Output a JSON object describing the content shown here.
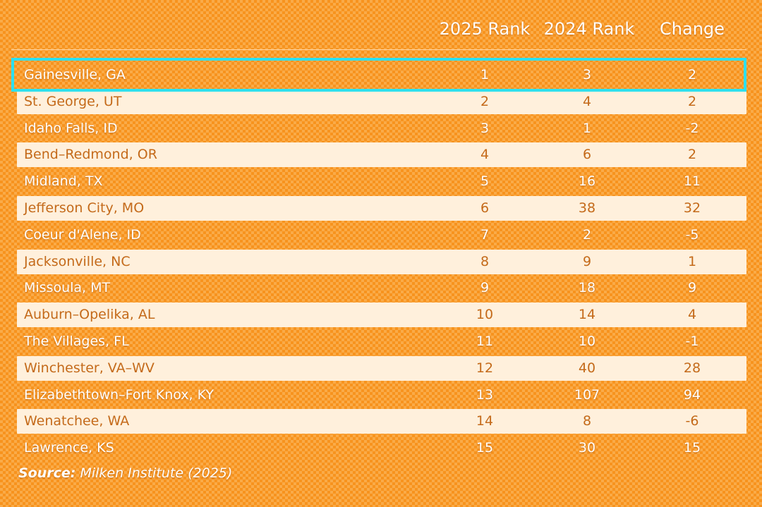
{
  "chart_data": {
    "type": "table",
    "columns": [
      "",
      "2025 Rank",
      "2024 Rank",
      "Change"
    ],
    "rows": [
      {
        "city": "Gainesville, GA",
        "rank_2025": "1",
        "rank_2024": "3",
        "change": "2"
      },
      {
        "city": "St. George, UT",
        "rank_2025": "2",
        "rank_2024": "4",
        "change": "2"
      },
      {
        "city": "Idaho Falls, ID",
        "rank_2025": "3",
        "rank_2024": "1",
        "change": "-2"
      },
      {
        "city": "Bend–Redmond, OR",
        "rank_2025": "4",
        "rank_2024": "6",
        "change": "2"
      },
      {
        "city": "Midland, TX",
        "rank_2025": "5",
        "rank_2024": "16",
        "change": "11"
      },
      {
        "city": "Jefferson City, MO",
        "rank_2025": "6",
        "rank_2024": "38",
        "change": "32"
      },
      {
        "city": "Coeur d'Alene, ID",
        "rank_2025": "7",
        "rank_2024": "2",
        "change": "-5"
      },
      {
        "city": "Jacksonville, NC",
        "rank_2025": "8",
        "rank_2024": "9",
        "change": "1"
      },
      {
        "city": "Missoula, MT",
        "rank_2025": "9",
        "rank_2024": "18",
        "change": "9"
      },
      {
        "city": "Auburn–Opelika, AL",
        "rank_2025": "10",
        "rank_2024": "14",
        "change": "4"
      },
      {
        "city": "The Villages, FL",
        "rank_2025": "11",
        "rank_2024": "10",
        "change": "-1"
      },
      {
        "city": "Winchester, VA–WV",
        "rank_2025": "12",
        "rank_2024": "40",
        "change": "28"
      },
      {
        "city": "Elizabethtown–Fort Knox, KY",
        "rank_2025": "13",
        "rank_2024": "107",
        "change": "94"
      },
      {
        "city": "Wenatchee, WA",
        "rank_2025": "14",
        "rank_2024": "8",
        "change": "-6"
      },
      {
        "city": "Lawrence, KS",
        "rank_2025": "15",
        "rank_2024": "30",
        "change": "15"
      }
    ],
    "highlighted_row": "Gainesville, GA",
    "source_label": "Source:",
    "source_text": "Milken Institute (2025)"
  },
  "colors": {
    "background": "#f7931e",
    "light_row": "#fff0dc",
    "light_row_text": "#c46a1a",
    "dark_row_text": "#ffffff",
    "highlight_border": "#2ee0ee"
  }
}
